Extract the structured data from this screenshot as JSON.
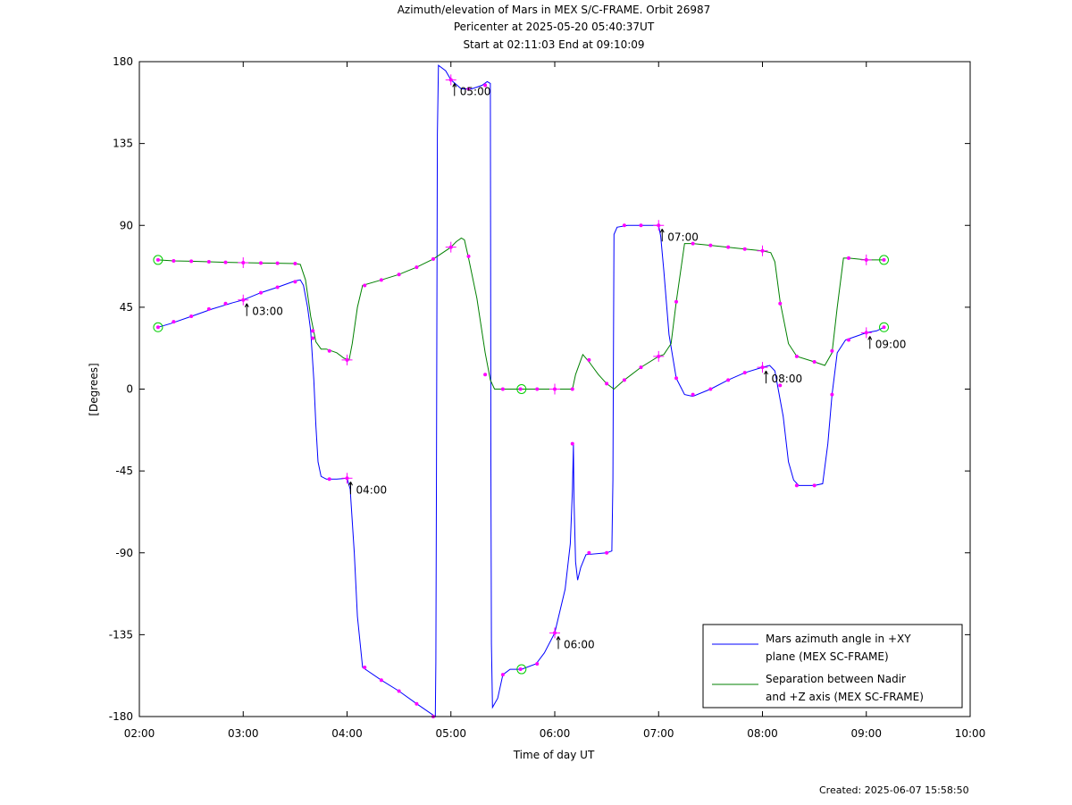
{
  "chart_data": {
    "type": "line",
    "title": [
      "Azimuth/elevation of Mars in MEX S/C-FRAME.  Orbit 26987",
      "Pericenter at 2025-05-20 05:40:37UT",
      "Start at 02:11:03 End at 09:10:09"
    ],
    "xlabel": "Time of day UT",
    "ylabel": "[Degrees]",
    "xlim": [
      2,
      10
    ],
    "ylim": [
      -180,
      180
    ],
    "x_ticks": [
      {
        "value": 2,
        "label": "02:00"
      },
      {
        "value": 3,
        "label": "03:00"
      },
      {
        "value": 4,
        "label": "04:00"
      },
      {
        "value": 5,
        "label": "05:00"
      },
      {
        "value": 6,
        "label": "06:00"
      },
      {
        "value": 7,
        "label": "07:00"
      },
      {
        "value": 8,
        "label": "08:00"
      },
      {
        "value": 9,
        "label": "09:00"
      },
      {
        "value": 10,
        "label": "10:00"
      }
    ],
    "y_ticks": [
      {
        "value": 180,
        "label": "180"
      },
      {
        "value": 135,
        "label": "135"
      },
      {
        "value": 90,
        "label": "90"
      },
      {
        "value": 45,
        "label": "45"
      },
      {
        "value": 0,
        "label": "0"
      },
      {
        "value": -45,
        "label": "-45"
      },
      {
        "value": -90,
        "label": "-90"
      },
      {
        "value": -135,
        "label": "-135"
      },
      {
        "value": -180,
        "label": "-180"
      }
    ],
    "legend_position": "bottom-right",
    "series": [
      {
        "name": "Mars azimuth angle in +XY plane (MEX SC-FRAME)",
        "name_lines": [
          "Mars azimuth angle in +XY",
          "plane (MEX SC-FRAME)"
        ],
        "color": "#0000ff",
        "points": [
          [
            2.18,
            34
          ],
          [
            2.3,
            36
          ],
          [
            2.5,
            40
          ],
          [
            2.7,
            44
          ],
          [
            2.9,
            47.5
          ],
          [
            3.0,
            49
          ],
          [
            3.17,
            53
          ],
          [
            3.33,
            56
          ],
          [
            3.5,
            59.5
          ],
          [
            3.55,
            60
          ],
          [
            3.58,
            57
          ],
          [
            3.62,
            45
          ],
          [
            3.65,
            32
          ],
          [
            3.68,
            5
          ],
          [
            3.7,
            -20
          ],
          [
            3.72,
            -40
          ],
          [
            3.75,
            -48
          ],
          [
            3.8,
            -49.5
          ],
          [
            3.9,
            -49.5
          ],
          [
            4.0,
            -49
          ],
          [
            4.03,
            -55
          ],
          [
            4.07,
            -90
          ],
          [
            4.1,
            -125
          ],
          [
            4.15,
            -153
          ],
          [
            4.33,
            -160
          ],
          [
            4.5,
            -166
          ],
          [
            4.67,
            -173
          ],
          [
            4.85,
            -180
          ],
          [
            4.855,
            -150
          ],
          [
            4.86,
            -60
          ],
          [
            4.865,
            50
          ],
          [
            4.87,
            140
          ],
          [
            4.88,
            178
          ],
          [
            4.95,
            175
          ],
          [
            5.0,
            170
          ],
          [
            5.1,
            165
          ],
          [
            5.2,
            165
          ],
          [
            5.3,
            167
          ],
          [
            5.35,
            169
          ],
          [
            5.38,
            168
          ],
          [
            5.382,
            80
          ],
          [
            5.385,
            -40
          ],
          [
            5.39,
            -140
          ],
          [
            5.4,
            -175
          ],
          [
            5.45,
            -170
          ],
          [
            5.5,
            -157
          ],
          [
            5.57,
            -154
          ],
          [
            5.68,
            -154
          ],
          [
            5.82,
            -151
          ],
          [
            5.9,
            -145
          ],
          [
            6.0,
            -134
          ],
          [
            6.1,
            -110
          ],
          [
            6.15,
            -85
          ],
          [
            6.17,
            -55
          ],
          [
            6.18,
            -30
          ],
          [
            6.185,
            -60
          ],
          [
            6.2,
            -95
          ],
          [
            6.22,
            -105
          ],
          [
            6.25,
            -98
          ],
          [
            6.3,
            -91
          ],
          [
            6.5,
            -90
          ],
          [
            6.55,
            -89
          ],
          [
            6.56,
            -50
          ],
          [
            6.565,
            20
          ],
          [
            6.57,
            85
          ],
          [
            6.6,
            89
          ],
          [
            6.7,
            90
          ],
          [
            6.83,
            90
          ],
          [
            7.0,
            90
          ],
          [
            7.02,
            84
          ],
          [
            7.05,
            65
          ],
          [
            7.1,
            30
          ],
          [
            7.17,
            6
          ],
          [
            7.25,
            -3
          ],
          [
            7.33,
            -4
          ],
          [
            7.5,
            0
          ],
          [
            7.67,
            5
          ],
          [
            7.83,
            9
          ],
          [
            8.0,
            12
          ],
          [
            8.07,
            13
          ],
          [
            8.12,
            10
          ],
          [
            8.2,
            -15
          ],
          [
            8.25,
            -40
          ],
          [
            8.3,
            -50
          ],
          [
            8.35,
            -53
          ],
          [
            8.5,
            -53
          ],
          [
            8.58,
            -52
          ],
          [
            8.63,
            -30
          ],
          [
            8.67,
            -3
          ],
          [
            8.72,
            20
          ],
          [
            8.8,
            27
          ],
          [
            8.9,
            29
          ],
          [
            9.0,
            31
          ],
          [
            9.1,
            32
          ],
          [
            9.17,
            34
          ]
        ],
        "markers": [
          [
            2.18,
            34
          ],
          [
            2.33,
            37
          ],
          [
            2.5,
            40
          ],
          [
            2.67,
            44
          ],
          [
            2.83,
            47
          ],
          [
            3.0,
            49
          ],
          [
            3.17,
            53
          ],
          [
            3.33,
            56
          ],
          [
            3.5,
            59
          ],
          [
            3.67,
            32
          ],
          [
            3.83,
            -49.5
          ],
          [
            4.0,
            -49
          ],
          [
            4.17,
            -153
          ],
          [
            4.33,
            -160
          ],
          [
            4.5,
            -166
          ],
          [
            4.67,
            -173
          ],
          [
            4.83,
            -180
          ],
          [
            5.0,
            170
          ],
          [
            5.17,
            165
          ],
          [
            5.33,
            167
          ],
          [
            5.5,
            -157
          ],
          [
            5.67,
            -154
          ],
          [
            5.83,
            -151
          ],
          [
            6.0,
            -134
          ],
          [
            6.17,
            -30
          ],
          [
            6.33,
            -90
          ],
          [
            6.5,
            -90
          ],
          [
            6.67,
            90
          ],
          [
            6.83,
            90
          ],
          [
            7.0,
            90
          ],
          [
            7.17,
            6
          ],
          [
            7.33,
            -3
          ],
          [
            7.5,
            0
          ],
          [
            7.67,
            5
          ],
          [
            7.83,
            9
          ],
          [
            8.0,
            12
          ],
          [
            8.17,
            2
          ],
          [
            8.33,
            -53
          ],
          [
            8.5,
            -53
          ],
          [
            8.67,
            -3
          ],
          [
            8.83,
            27
          ],
          [
            9.0,
            31
          ],
          [
            9.17,
            34
          ]
        ],
        "hour_marks": [
          [
            3.0,
            49
          ],
          [
            4.0,
            -49
          ],
          [
            5.0,
            170
          ],
          [
            6.0,
            -134
          ],
          [
            7.0,
            90
          ],
          [
            8.0,
            12
          ],
          [
            9.0,
            31
          ]
        ],
        "circles": [
          [
            2.18,
            34
          ],
          [
            5.68,
            -154
          ],
          [
            9.17,
            34
          ]
        ]
      },
      {
        "name": "Separation between Nadir and +Z axis (MEX SC-FRAME)",
        "name_lines": [
          "Separation between Nadir",
          "and +Z axis (MEX SC-FRAME)"
        ],
        "color": "#008000",
        "points": [
          [
            2.18,
            71
          ],
          [
            2.33,
            70.5
          ],
          [
            2.5,
            70.3
          ],
          [
            2.67,
            70
          ],
          [
            2.83,
            69.7
          ],
          [
            3.0,
            69.5
          ],
          [
            3.17,
            69.3
          ],
          [
            3.33,
            69.2
          ],
          [
            3.5,
            69
          ],
          [
            3.55,
            68.5
          ],
          [
            3.6,
            60
          ],
          [
            3.65,
            40
          ],
          [
            3.7,
            26
          ],
          [
            3.75,
            22
          ],
          [
            3.8,
            22
          ],
          [
            3.9,
            20
          ],
          [
            3.97,
            17
          ],
          [
            4.02,
            16
          ],
          [
            4.05,
            25
          ],
          [
            4.1,
            45
          ],
          [
            4.15,
            57
          ],
          [
            4.33,
            60
          ],
          [
            4.5,
            63
          ],
          [
            4.67,
            67
          ],
          [
            4.83,
            71.5
          ],
          [
            5.0,
            78
          ],
          [
            5.05,
            81
          ],
          [
            5.1,
            83
          ],
          [
            5.13,
            82
          ],
          [
            5.17,
            72
          ],
          [
            5.25,
            50
          ],
          [
            5.33,
            20
          ],
          [
            5.38,
            5
          ],
          [
            5.42,
            0
          ],
          [
            5.5,
            0
          ],
          [
            5.67,
            0
          ],
          [
            5.83,
            0
          ],
          [
            6.0,
            0
          ],
          [
            6.17,
            0
          ],
          [
            6.2,
            8
          ],
          [
            6.27,
            19
          ],
          [
            6.33,
            15
          ],
          [
            6.42,
            8
          ],
          [
            6.5,
            3
          ],
          [
            6.57,
            0
          ],
          [
            6.67,
            5
          ],
          [
            6.83,
            12
          ],
          [
            7.0,
            18
          ],
          [
            7.05,
            19
          ],
          [
            7.12,
            25
          ],
          [
            7.17,
            48
          ],
          [
            7.25,
            80
          ],
          [
            7.33,
            80
          ],
          [
            7.5,
            79
          ],
          [
            7.67,
            78
          ],
          [
            7.83,
            77
          ],
          [
            8.0,
            76
          ],
          [
            8.08,
            75
          ],
          [
            8.12,
            70
          ],
          [
            8.17,
            48
          ],
          [
            8.25,
            25
          ],
          [
            8.33,
            18
          ],
          [
            8.5,
            15
          ],
          [
            8.6,
            13
          ],
          [
            8.67,
            20
          ],
          [
            8.72,
            45
          ],
          [
            8.78,
            72
          ],
          [
            8.83,
            72
          ],
          [
            9.0,
            71
          ],
          [
            9.17,
            71
          ]
        ],
        "markers": [
          [
            2.18,
            71
          ],
          [
            2.33,
            70.5
          ],
          [
            2.5,
            70.3
          ],
          [
            2.67,
            70
          ],
          [
            2.83,
            69.7
          ],
          [
            3.0,
            69.5
          ],
          [
            3.17,
            69.3
          ],
          [
            3.33,
            69.2
          ],
          [
            3.5,
            69
          ],
          [
            3.67,
            28
          ],
          [
            3.83,
            21
          ],
          [
            4.0,
            16
          ],
          [
            4.17,
            57
          ],
          [
            4.33,
            60
          ],
          [
            4.5,
            63
          ],
          [
            4.67,
            67
          ],
          [
            4.83,
            71.5
          ],
          [
            5.0,
            78
          ],
          [
            5.17,
            73
          ],
          [
            5.33,
            8
          ],
          [
            5.5,
            0
          ],
          [
            5.67,
            0
          ],
          [
            5.83,
            0
          ],
          [
            6.0,
            0
          ],
          [
            6.17,
            0
          ],
          [
            6.33,
            16
          ],
          [
            6.5,
            3
          ],
          [
            6.67,
            5
          ],
          [
            6.83,
            12
          ],
          [
            7.0,
            18
          ],
          [
            7.17,
            48
          ],
          [
            7.33,
            80
          ],
          [
            7.5,
            79
          ],
          [
            7.67,
            78
          ],
          [
            7.83,
            77
          ],
          [
            8.0,
            76
          ],
          [
            8.17,
            47
          ],
          [
            8.33,
            18
          ],
          [
            8.5,
            15
          ],
          [
            8.67,
            21
          ],
          [
            8.83,
            72
          ],
          [
            9.0,
            71
          ],
          [
            9.17,
            71
          ]
        ],
        "hour_marks": [
          [
            3.0,
            69.5
          ],
          [
            4.0,
            16
          ],
          [
            5.0,
            78
          ],
          [
            6.0,
            0
          ],
          [
            7.0,
            18
          ],
          [
            8.0,
            76
          ],
          [
            9.0,
            71
          ]
        ],
        "circles": [
          [
            2.18,
            71
          ],
          [
            5.68,
            0
          ],
          [
            9.17,
            71
          ]
        ]
      }
    ],
    "annotations": [
      {
        "x": 3.0,
        "y": 49,
        "label": "03:00"
      },
      {
        "x": 4.0,
        "y": -49,
        "label": "04:00"
      },
      {
        "x": 5.0,
        "y": 170,
        "label": "05:00"
      },
      {
        "x": 6.0,
        "y": -134,
        "label": "06:00"
      },
      {
        "x": 7.0,
        "y": 90,
        "label": "07:00"
      },
      {
        "x": 8.0,
        "y": 12,
        "label": "08:00"
      },
      {
        "x": 9.0,
        "y": 31,
        "label": "09:00"
      }
    ]
  },
  "footer": {
    "created": "Created: 2025-06-07 15:58:50"
  }
}
